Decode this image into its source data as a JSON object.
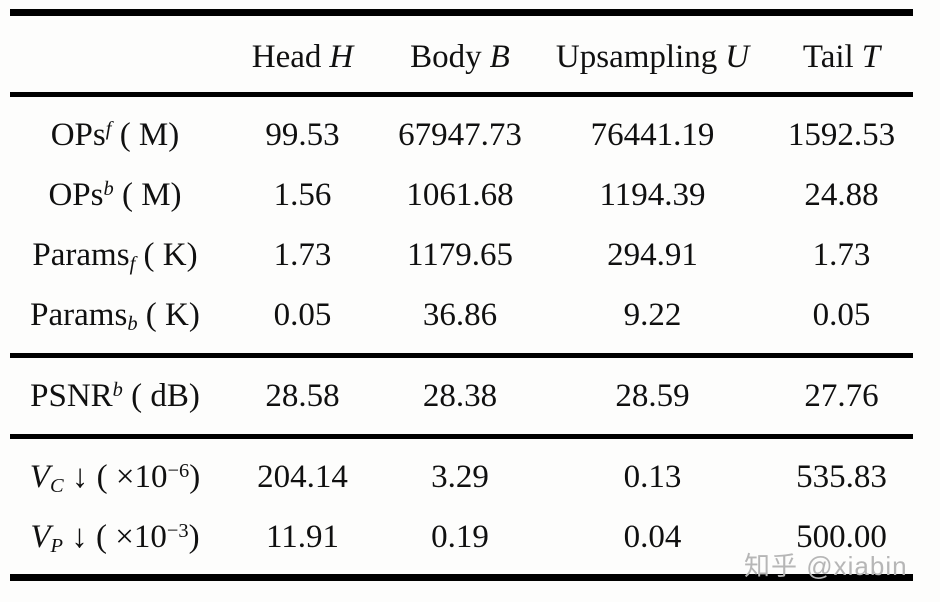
{
  "watermark": {
    "text": "知乎 @xiabin",
    "color": "#b6b6b6"
  },
  "table": {
    "columns": [
      {
        "label": "Head",
        "symbol": "H"
      },
      {
        "label": "Body",
        "symbol": "B"
      },
      {
        "label": "Upsampling",
        "symbol": "U"
      },
      {
        "label": "Tail",
        "symbol": "T"
      }
    ],
    "rows": [
      {
        "name": "ops-forward",
        "label": {
          "base": "OPs",
          "sup": "f",
          "unit": " ( M)"
        },
        "values": [
          "99.53",
          "67947.73",
          "76441.19",
          "1592.53"
        ]
      },
      {
        "name": "ops-backward",
        "label": {
          "base": "OPs",
          "sup": "b",
          "unit": " ( M)"
        },
        "values": [
          "1.56",
          "1061.68",
          "1194.39",
          "24.88"
        ]
      },
      {
        "name": "params-forward",
        "label": {
          "base": "Params",
          "sub": "f",
          "unit": " ( K)"
        },
        "values": [
          "1.73",
          "1179.65",
          "294.91",
          "1.73"
        ]
      },
      {
        "name": "params-backward",
        "label": {
          "base": "Params",
          "sub": "b",
          "unit": " ( K)"
        },
        "values": [
          "0.05",
          "36.86",
          "9.22",
          "0.05"
        ]
      },
      {
        "name": "psnr-backward",
        "label": {
          "base": "PSNR",
          "sup": "b",
          "unit": " ( dB)"
        },
        "values": [
          "28.58",
          "28.38",
          "28.59",
          "27.76"
        ]
      },
      {
        "name": "v-c",
        "label": {
          "base": "V",
          "sub": "C",
          "mid": " ↓ ( ×10",
          "exp": "−6",
          "end": ")"
        },
        "values": [
          "204.14",
          "3.29",
          "0.13",
          "535.83"
        ]
      },
      {
        "name": "v-p",
        "label": {
          "base": "V",
          "sub": "P",
          "mid": " ↓ ( ×10",
          "exp": "−3",
          "end": ")"
        },
        "values": [
          "11.91",
          "0.19",
          "0.04",
          "500.00"
        ]
      }
    ]
  }
}
